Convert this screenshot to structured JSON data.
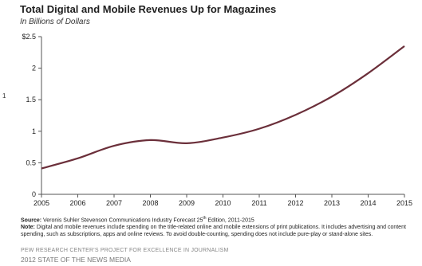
{
  "header": {
    "title": "Total Digital and Mobile Revenues  Up for Magazines",
    "subtitle": "In Billions  of Dollars",
    "stray_mark": "1"
  },
  "notes": {
    "source_label": "Source:",
    "source_text": " Veronis Suhler Stevenson Communications Industry Forecast 25",
    "source_sup": "th",
    "source_text_end": " Edition, 2011-2015",
    "note_label": "Note:",
    "note_text": " Digital and mobile revenues include spending on the title-related online and mobile extensions of print publications. It includes advertising and content spending, such as subscriptions, apps and online reviews. To avoid double-counting, spending does not include pure-play or stand-alone sites."
  },
  "footer": {
    "line1": "PEW RESEARCH CENTER'S PROJECT FOR EXCELLENCE IN JOURNALISM",
    "line2": "2012 STATE OF THE NEWS MEDIA"
  },
  "colors": {
    "line": "#6b2f3a",
    "axis": "#555555"
  },
  "chart_data": {
    "type": "line",
    "title": "Total Digital and Mobile Revenues  Up for Magazines",
    "subtitle": "In Billions  of Dollars",
    "x": [
      2005,
      2006,
      2007,
      2008,
      2009,
      2010,
      2011,
      2012,
      2013,
      2014,
      2015
    ],
    "series": [
      {
        "values": [
          0.41,
          0.57,
          0.77,
          0.86,
          0.81,
          0.9,
          1.04,
          1.26,
          1.55,
          1.92,
          2.35
        ]
      }
    ],
    "yticks": [
      0,
      0.5,
      1,
      1.5,
      2,
      2.5
    ],
    "ytick_labels": [
      "0",
      "0.5",
      "1",
      "1.5",
      "2",
      "$2.5"
    ],
    "xtick_labels": [
      "2005",
      "2006",
      "2007",
      "2008",
      "2009",
      "2010",
      "2011",
      "2012",
      "2013",
      "2014",
      "2015"
    ],
    "ylim": [
      0,
      2.5
    ],
    "xlim": [
      2005,
      2015
    ],
    "grid": false,
    "legend": "none"
  }
}
